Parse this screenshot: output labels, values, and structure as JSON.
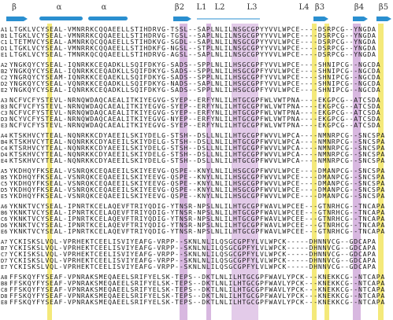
{
  "header": {
    "labels": [
      "β",
      "α",
      "α",
      "β2",
      "L1",
      "L2",
      "L3",
      "L4",
      "β3",
      "β4",
      "β5"
    ]
  },
  "blocks": [
    {
      "rows": [
        {
          "label": "A1",
          "seq": "LTGKLVCYSEAL-VMNRRKCQQAEELLSTIHDRVG-TSSL--SAPLNLILNSGCGPYYVVLWPCE----DSRPCG--YNGDA"
        },
        {
          "label": "B1",
          "seq": "LTGKLVCYSEAL-VMNRRKCQQAEELLSTIHDRVG-TGSL--SAPLNLILNSGCGPYYVVLWPCE----DSRPCG--YNGDA"
        },
        {
          "label": "C1",
          "seq": "LTETMVCYSEAL-AMNRKQCQQAEELLSTIHDKVG-SGDL--SAPLNLILNSGCGPYYVVLWPCE----DSRPCG--YNGDA"
        },
        {
          "label": "D1",
          "seq": "LTGKLVCYSEAL-VMNRRKCQQAEELLSTIHDKFG-NGSL--STPLNLILNSGCGPYYVVLWPCE----DSRPCG--YNGDA"
        },
        {
          "label": "E1",
          "seq": "LTGKLVCYSEAL-TMNRKQCQQAEELLSTIHDRVG-AGSL--SAPLNLILNSGCGPYYVVLWPCE----DSRPCG--YNGDA"
        }
      ]
    },
    {
      "rows": [
        {
          "label": "A2",
          "seq": "YNGKQYCYSEAL-IQNRKKCEQADKLLSQIFDKYG-SADS--SPPLNLILHSGCGPFYVVLWPCE----SHNIPCG--NGCDA"
        },
        {
          "label": "B2",
          "seq": "YNGKQYCYSEAL-IQNRKKCEQADKLLSQIFDKYG-SADS--SPPLNLILHSGCGPFYVVLWPCE----SHNIPCG--NGCDA"
        },
        {
          "label": "C2",
          "seq": "YNGRQYCYSEAM-IQNRKKCEQAEKLLSQIFDKYG-SADS--SPPLNLILHSGCGPFYVVLWPCE----SHNIPCG--NGCDA"
        },
        {
          "label": "D2",
          "seq": "YNGKQYCYSEAL-VQNRKKCEQADKLLSQIFDKYG-NADS--SAPLNLILHSGCGPFYVVLWPCE----SHNIPCG--NGCDA"
        },
        {
          "label": "E2",
          "seq": "YNGKQYCYSEAL-IQNRKKCEQADKLLSQIFDKYG-SADS--SPPLNLILHSGCGPFYVVLWPCE----SHNIPCG--NGCDA"
        }
      ]
    },
    {
      "rows": [
        {
          "label": "A3",
          "seq": "NCFVCFYSTEVL-NRNQWDAQCAEALITKIYEGVG-SYEP--ERFYNLILHTGCGPFWLVWTPNA----EKGPCG--ATCSDA"
        },
        {
          "label": "B3",
          "seq": "NCFVCFYSTEVL-NRNQWDAQCAEALITKIYEGVG-SYEP--ERFYNLILHTGCGPFWLVWTPNA----EKGPCG--ATCSDA"
        },
        {
          "label": "C3",
          "seq": "NCFVCFYSTEVL-NRNQWDAQCAEALITKIYEGVG-SYEP--ERFYNLILHTGCGPFWLVWTPNA----EKGPCG--ATCSDA"
        },
        {
          "label": "D3",
          "seq": "NCYVCFYSTEAL-NRNQWDAQCAEALITKIYEGVG-NYEP--ERFYNLILHTGCGPFWLVWTPNA----EKGPCG--ATCSDA"
        },
        {
          "label": "E3",
          "seq": "NCFVCFYSTEVL-NRNQWDAQCAEALITKIYEGVG-SYEP--ERFYNLILHTGCGPFWLVWTPNA----EKGPCG--ATCSDA"
        }
      ]
    },
    {
      "rows": [
        {
          "label": "A4",
          "seq": "KTSKHVCYTEAL-NQNRKKCDYAEEILSKIYDELG-STSH--DSLLNLILHTGCGPFWVVLWPCA----NMNRPCG--SNCSPA"
        },
        {
          "label": "B4",
          "seq": "KTSKHVCYTEAL-NQNRKKCDYAEEILSKIYDELG-STSH--DSLLNLILHTGCGPFWVVLWPCA----NMNRPCG--SNCSPA"
        },
        {
          "label": "C4",
          "seq": "KTSRHVCYTEAL-NQNRKKCDYAEEILSKIYDELG-STSH--DSLLNLILHTGCGPFWVVLWPCA----NMNRPCG--SNCSPA"
        },
        {
          "label": "D4",
          "seq": "KTSKHVCYTEAL-NQNRKKCDYAEEILSKIYDELG-STSH--DSLLNLILHTGCGPFWVVLWPCA----NMNRPCG--SNCSPA"
        },
        {
          "label": "E4",
          "seq": "KTSKHVCYTEAL-NQNRKKCDYAEEILSKIYDELG-STSH--DSLLNLILHTGCGPFWVVLWPCA----NMNRPCG--SNCSPA"
        }
      ]
    },
    {
      "rows": [
        {
          "label": "A5",
          "seq": "YKDHQYFKSEAL-VSNRQKCEQAEEILSKIYEEVG-QSPE--KNYLNLILHSGCGPFWVVLWPCE----DMANPCG--SNCSPA"
        },
        {
          "label": "B5",
          "seq": "YKDHQYFKSEAL-VSNRQKCEQAEEILSKIYEEVG-QSPE--KNYLNLILHSGCGPFWVVLWPCE----DMANPCG--SNCSPA"
        },
        {
          "label": "C5",
          "seq": "YKDHQYFKSEAL-VSNRQKCEQAEEILSKIYEEVG-QSPE--KNYLNLILHSGCGPFWVVLWPCE----DMANPCG--SNCSPA"
        },
        {
          "label": "D5",
          "seq": "YKDHQYFKSEAL-VSNRQKCEQAEEILSKIYEEVG-QSPE--KNYLNLILHSGCGPFWVVLWPCE----DMANPCG--SNCSPA"
        },
        {
          "label": "E5",
          "seq": "YKDHQYFKSEAL-VSNRQKCEQAEEILSKIYEEVG-QSPE--KNYLNLILHSGCGPFWVVLWPCE----DMANPCG--SNCSPA"
        }
      ]
    },
    {
      "rows": [
        {
          "label": "A6",
          "seq": "YKNKTVCYSEAL-IPNRTKCELAQEVFTRIYQDIG-YTNSR-NPSLNLILHTGCGPFWAVLWPCEE---GTNRHCG--TNCAPA"
        },
        {
          "label": "B6",
          "seq": "YKNKTVCYSEAL-IPNRTKCELAQEVFTRIYQDIG-YTNSR-NPSLNLILHTGCGPFWAVLWPCEE---GTNRHCG--TNCAPA"
        },
        {
          "label": "C6",
          "seq": "YKNKTVCYSEAL-IPNRTKCELAQEVFTRIYQDIG-YTNSR-NPSLNLILHTGCGPFWAVLWPCEE---GTNRHCG--TNCAPA"
        },
        {
          "label": "D6",
          "seq": "YKNKTVCYSEAL-IPNRTKCELAQEVFTRIYQDIG-YTNSR-NPSLNLILHTGCGPFWAVLWPCEE---GTNRHCG--TNCAPA"
        },
        {
          "label": "E6",
          "seq": "YKNKTVCYSEAL-IPNRTKCELAQEVFTRIYQDIG-YTNSR-NPSLNLILHTGCGPFWAVLWPCEE---GTNRHCG--TNCAPA"
        }
      ]
    },
    {
      "rows": [
        {
          "label": "A7",
          "seq": "YCKISKSLVQL-VPRHEKTCEELISVIYEAFG-VRPP--SKNLNLILQSGCGPFYLVLWPCK-----DHNNVCG--GDCAPA"
        },
        {
          "label": "B7",
          "seq": "YCKISKSLVQL-VPRHEKTCEELISVIYEAFG-VRPP--SKNLNLILQSGCGPFYLVLWPCK-----DHNNVCG--GDCAPA"
        },
        {
          "label": "C7",
          "seq": "YCKISKSLVQL-VPRHEKTCEELISVIYEAFG-VRPP--SKNLNLILQSGCGPFYLVLWPCK-----DHNNVCG--GDCAPA"
        },
        {
          "label": "D7",
          "seq": "YCKISKSLVQL-VPRHEKTCEELISVIYEAFG-VRPP--SKNLNLILQSGCGPFYLVLWPCK-----DHNNVCG--GDCAPA"
        },
        {
          "label": "E7",
          "seq": "YCKISKSLVQL-VPRHEKTCEELISVIYEAFG-VRPP--SKNLNLILQSGCGPFYLVLWPCK-----DHNNVCG--GDCAPA"
        }
      ]
    },
    {
      "rows": [
        {
          "label": "A8",
          "seq": "FFSKQYFYSEAF-VPNRAKSMEQAEELSRIFYELSK-TEPS--DKTLNLILHTGCGPFWAVLYPCK---KNEKKCG--NTCAPA"
        },
        {
          "label": "B8",
          "seq": "FFSKQYFYSEAF-VPNRAKSMEQAEELSRIFYELSK-TEPS--DKTLNLILHTGCGPFWAVLYPCK---KNEKKCG--NTCAPA"
        },
        {
          "label": "C8",
          "seq": "FFSKQYFYSEAF-VPNRAKSMEQAEELSRIFYELSK-TEPS--DKTLNLILHTGCGPFWAVLYPCK---KNEKKCG--NTCAPA"
        },
        {
          "label": "D8",
          "seq": "FFSKQYFYSEAF-VPNRAKSMEQAEELSRIFYELSK-TEPS--DKTLNLILHTGCGPFWAVLYPCK---KNEKKCG--NTCAPA"
        },
        {
          "label": "E8",
          "seq": "FFSKQYFYSEAF-VPNRAKSMEQAEELSRIFYELSK-TEPS--DKTLNLILHTGCGPFWAVLYPCK---KNEKKCG--NTCAPA"
        }
      ]
    }
  ]
}
